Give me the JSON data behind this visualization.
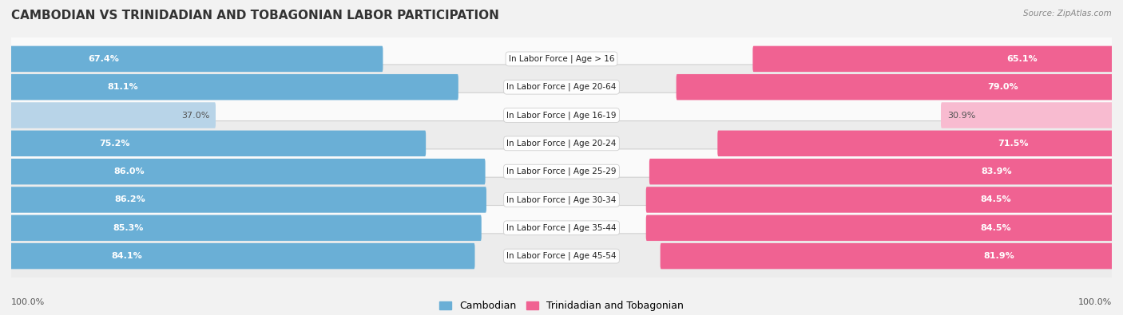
{
  "title": "CAMBODIAN VS TRINIDADIAN AND TOBAGONIAN LABOR PARTICIPATION",
  "source": "Source: ZipAtlas.com",
  "categories": [
    "In Labor Force | Age > 16",
    "In Labor Force | Age 20-64",
    "In Labor Force | Age 16-19",
    "In Labor Force | Age 20-24",
    "In Labor Force | Age 25-29",
    "In Labor Force | Age 30-34",
    "In Labor Force | Age 35-44",
    "In Labor Force | Age 45-54"
  ],
  "cambodian_values": [
    67.4,
    81.1,
    37.0,
    75.2,
    86.0,
    86.2,
    85.3,
    84.1
  ],
  "trinidadian_values": [
    65.1,
    79.0,
    30.9,
    71.5,
    83.9,
    84.5,
    84.5,
    81.9
  ],
  "cambodian_color_strong": "#6aafd6",
  "cambodian_color_light": "#b8d4e8",
  "trinidadian_color_strong": "#f06292",
  "trinidadian_color_light": "#f8bbd0",
  "bar_height": 0.62,
  "max_value": 100.0,
  "background_color": "#f2f2f2",
  "row_bg_even": "#fafafa",
  "row_bg_odd": "#ececec",
  "title_fontsize": 11,
  "value_fontsize": 8,
  "cat_label_fontsize": 7.5,
  "legend_labels": [
    "Cambodian",
    "Trinidadian and Tobagonian"
  ],
  "light_threshold": 50
}
